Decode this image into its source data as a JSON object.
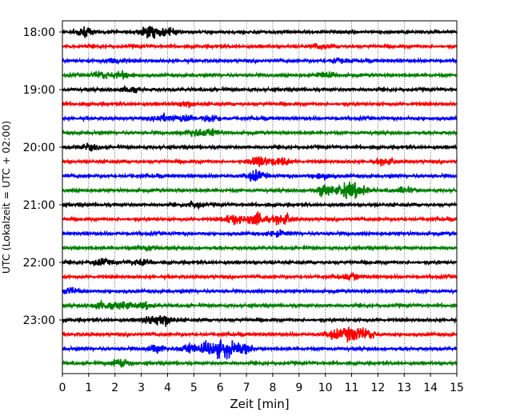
{
  "chart_data": {
    "type": "line",
    "title": "",
    "xlabel": "Zeit  [min]",
    "ylabel": "UTC (Lokalzeit = UTC + 02:00)",
    "xlim": [
      0,
      15
    ],
    "x_ticks": [
      "0",
      "1",
      "2",
      "3",
      "4",
      "5",
      "6",
      "7",
      "8",
      "9",
      "10",
      "11",
      "12",
      "13",
      "14",
      "15"
    ],
    "y_ticks": [
      "18:00",
      "19:00",
      "20:00",
      "21:00",
      "22:00",
      "23:00"
    ],
    "grid": "vertical dotted",
    "trace_interval_min": 15,
    "trace_colors": [
      "#000000",
      "#ff0000",
      "#0000ff",
      "#008000"
    ],
    "traces": [
      {
        "start": "18:00",
        "events": [
          {
            "t": 0.8,
            "amp": 1.6
          },
          {
            "t": 3.3,
            "amp": 2.2
          },
          {
            "t": 4.0,
            "amp": 1.2
          }
        ]
      },
      {
        "start": "18:15",
        "events": [
          {
            "t": 9.8,
            "amp": 1.0
          }
        ]
      },
      {
        "start": "18:30",
        "events": [
          {
            "t": 2.0,
            "amp": 1.0
          },
          {
            "t": 10.5,
            "amp": 0.9
          }
        ]
      },
      {
        "start": "18:45",
        "events": [
          {
            "t": 1.5,
            "amp": 1.3
          },
          {
            "t": 2.3,
            "amp": 1.2
          },
          {
            "t": 10.0,
            "amp": 1.0
          }
        ]
      },
      {
        "start": "19:00",
        "events": [
          {
            "t": 2.5,
            "amp": 1.0
          }
        ]
      },
      {
        "start": "19:15",
        "events": [
          {
            "t": 4.7,
            "amp": 1.1
          }
        ]
      },
      {
        "start": "19:30",
        "events": [
          {
            "t": 3.8,
            "amp": 1.3
          },
          {
            "t": 4.7,
            "amp": 1.4
          },
          {
            "t": 5.7,
            "amp": 1.2
          }
        ]
      },
      {
        "start": "19:45",
        "events": [
          {
            "t": 5.0,
            "amp": 1.2
          },
          {
            "t": 5.6,
            "amp": 1.4
          }
        ]
      },
      {
        "start": "20:00",
        "events": [
          {
            "t": 1.0,
            "amp": 1.0
          }
        ]
      },
      {
        "start": "20:15",
        "events": [
          {
            "t": 7.5,
            "amp": 1.9
          },
          {
            "t": 8.3,
            "amp": 1.4
          },
          {
            "t": 12.3,
            "amp": 1.1
          }
        ]
      },
      {
        "start": "20:30",
        "events": [
          {
            "t": 7.3,
            "amp": 1.9
          },
          {
            "t": 9.8,
            "amp": 1.0
          }
        ]
      },
      {
        "start": "20:45",
        "events": [
          {
            "t": 10.0,
            "amp": 1.9
          },
          {
            "t": 10.8,
            "amp": 2.4
          },
          {
            "t": 11.3,
            "amp": 2.0
          },
          {
            "t": 13.0,
            "amp": 1.1
          }
        ]
      },
      {
        "start": "21:00",
        "events": [
          {
            "t": 5.0,
            "amp": 1.1
          }
        ]
      },
      {
        "start": "21:15",
        "events": [
          {
            "t": 6.5,
            "amp": 1.6
          },
          {
            "t": 7.4,
            "amp": 2.3
          },
          {
            "t": 8.4,
            "amp": 1.9
          }
        ]
      },
      {
        "start": "21:30",
        "events": [
          {
            "t": 8.2,
            "amp": 1.0
          }
        ]
      },
      {
        "start": "21:45",
        "events": [
          {
            "t": 3.2,
            "amp": 1.0
          }
        ]
      },
      {
        "start": "22:00",
        "events": [
          {
            "t": 1.5,
            "amp": 1.1
          },
          {
            "t": 3.0,
            "amp": 1.0
          }
        ]
      },
      {
        "start": "22:15",
        "events": [
          {
            "t": 11.0,
            "amp": 0.9
          }
        ]
      },
      {
        "start": "22:30",
        "events": [
          {
            "t": 0.3,
            "amp": 1.0
          }
        ]
      },
      {
        "start": "22:45",
        "events": [
          {
            "t": 1.5,
            "amp": 1.4
          },
          {
            "t": 2.3,
            "amp": 1.3
          },
          {
            "t": 3.2,
            "amp": 1.1
          }
        ]
      },
      {
        "start": "23:00",
        "events": [
          {
            "t": 3.9,
            "amp": 1.9
          },
          {
            "t": 3.4,
            "amp": 1.3
          }
        ]
      },
      {
        "start": "23:15",
        "events": [
          {
            "t": 10.3,
            "amp": 1.6
          },
          {
            "t": 11.0,
            "amp": 2.5
          },
          {
            "t": 11.6,
            "amp": 1.7
          }
        ]
      },
      {
        "start": "23:30",
        "events": [
          {
            "t": 3.6,
            "amp": 1.2
          },
          {
            "t": 4.8,
            "amp": 1.8
          },
          {
            "t": 5.6,
            "amp": 2.4
          },
          {
            "t": 6.2,
            "amp": 3.0
          },
          {
            "t": 6.9,
            "amp": 1.8
          }
        ]
      },
      {
        "start": "23:45",
        "events": [
          {
            "t": 2.2,
            "amp": 1.6
          }
        ]
      }
    ]
  }
}
